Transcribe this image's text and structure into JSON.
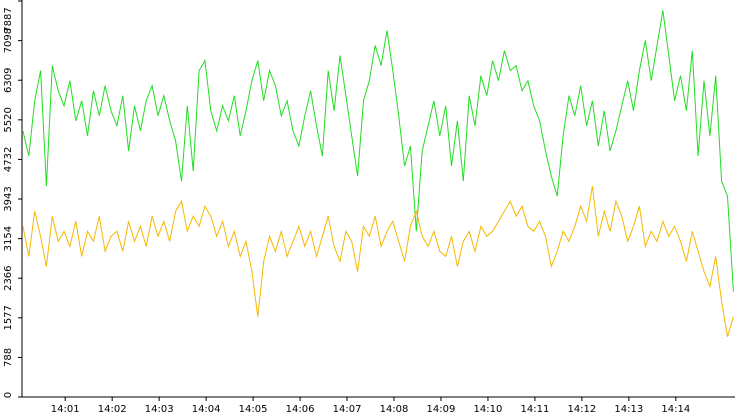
{
  "chart_data": {
    "type": "line",
    "x": [
      0.1,
      0.225,
      0.35,
      0.475,
      0.6,
      0.725,
      0.85,
      0.975,
      1.1,
      1.225,
      1.35,
      1.475,
      1.6,
      1.725,
      1.85,
      1.975,
      2.1,
      2.225,
      2.35,
      2.475,
      2.6,
      2.725,
      2.85,
      2.975,
      3.1,
      3.225,
      3.35,
      3.475,
      3.6,
      3.725,
      3.85,
      3.975,
      4.1,
      4.225,
      4.35,
      4.475,
      4.6,
      4.725,
      4.85,
      4.975,
      5.1,
      5.225,
      5.35,
      5.475,
      5.6,
      5.725,
      5.85,
      5.975,
      6.1,
      6.225,
      6.35,
      6.475,
      6.6,
      6.725,
      6.85,
      6.975,
      7.1,
      7.225,
      7.35,
      7.475,
      7.6,
      7.725,
      7.85,
      7.975,
      8.1,
      8.225,
      8.35,
      8.475,
      8.6,
      8.725,
      8.85,
      8.975,
      9.1,
      9.225,
      9.35,
      9.475,
      9.6,
      9.725,
      9.85,
      9.975,
      10.1,
      10.225,
      10.35,
      10.475,
      10.6,
      10.725,
      10.85,
      10.975,
      11.1,
      11.225,
      11.35,
      11.475,
      11.6,
      11.725,
      11.85,
      11.975,
      12.1,
      12.225,
      12.35,
      12.475,
      12.6,
      12.725,
      12.85,
      12.975,
      13.1,
      13.225,
      13.35,
      13.475,
      13.6,
      13.725,
      13.85,
      13.975,
      14.1,
      14.225,
      14.35,
      14.475,
      14.6,
      14.725,
      14.85,
      14.975,
      15.1,
      15.225
    ],
    "series": [
      {
        "color": "#22dd22",
        "values": [
          5300,
          4800,
          5900,
          6500,
          4200,
          6600,
          6100,
          5800,
          6300,
          5500,
          5900,
          5200,
          6100,
          5600,
          6200,
          5700,
          5400,
          6000,
          4900,
          5800,
          5300,
          5900,
          6200,
          5600,
          6000,
          5500,
          5100,
          4300,
          5800,
          4500,
          6500,
          6700,
          5700,
          5300,
          5800,
          5500,
          6000,
          5200,
          5700,
          6300,
          6700,
          5900,
          6500,
          6200,
          5600,
          5900,
          5300,
          5000,
          5600,
          6100,
          5400,
          4800,
          6500,
          5700,
          6800,
          6000,
          5200,
          4400,
          5900,
          6300,
          7000,
          6600,
          7300,
          6500,
          5600,
          4600,
          5000,
          3300,
          4900,
          5400,
          5900,
          5200,
          5800,
          4600,
          5500,
          4300,
          6000,
          5400,
          6400,
          6000,
          6700,
          6300,
          6900,
          6500,
          6600,
          6100,
          6300,
          5800,
          5500,
          4900,
          4400,
          4000,
          5200,
          6000,
          5600,
          6200,
          5400,
          5900,
          5000,
          5700,
          4900,
          5300,
          5800,
          6300,
          5700,
          6500,
          7100,
          6300,
          7000,
          7700,
          6800,
          5900,
          6400,
          5700,
          6900,
          4800,
          6300,
          5200,
          6400,
          4300,
          4000,
          2100
        ]
      },
      {
        "color": "#f5b800",
        "values": [
          3400,
          2800,
          3700,
          3200,
          2600,
          3600,
          3100,
          3300,
          3000,
          3500,
          2800,
          3300,
          3100,
          3600,
          2900,
          3200,
          3300,
          2900,
          3500,
          3100,
          3400,
          3000,
          3600,
          3200,
          3500,
          3100,
          3700,
          3900,
          3300,
          3600,
          3400,
          3800,
          3600,
          3200,
          3500,
          3000,
          3300,
          2800,
          3100,
          2500,
          1600,
          2700,
          3200,
          2900,
          3300,
          2800,
          3100,
          3400,
          3000,
          3300,
          2800,
          3200,
          3600,
          3000,
          2700,
          3300,
          3100,
          2500,
          3400,
          3200,
          3600,
          3000,
          3300,
          3500,
          3100,
          2700,
          3400,
          3700,
          3200,
          3000,
          3300,
          2900,
          2800,
          3200,
          2600,
          3100,
          3300,
          2900,
          3400,
          3200,
          3300,
          3500,
          3700,
          3900,
          3600,
          3800,
          3400,
          3300,
          3500,
          3200,
          2600,
          2900,
          3300,
          3100,
          3400,
          3800,
          3500,
          4200,
          3200,
          3700,
          3300,
          3900,
          3600,
          3100,
          3400,
          3800,
          3000,
          3300,
          3100,
          3500,
          3200,
          3400,
          3100,
          2700,
          3300,
          2900,
          2500,
          2200,
          2800,
          1900,
          1200,
          1600
        ]
      }
    ],
    "xlim": [
      0.08,
      15.26
    ],
    "xticks": [
      {
        "value": 1,
        "label": "14:01"
      },
      {
        "value": 2,
        "label": "14:02"
      },
      {
        "value": 3,
        "label": "14:03"
      },
      {
        "value": 4,
        "label": "14:04"
      },
      {
        "value": 5,
        "label": "14:05"
      },
      {
        "value": 6,
        "label": "14:06"
      },
      {
        "value": 7,
        "label": "14:07"
      },
      {
        "value": 8,
        "label": "14:08"
      },
      {
        "value": 9,
        "label": "14:09"
      },
      {
        "value": 10,
        "label": "14:10"
      },
      {
        "value": 11,
        "label": "14:11"
      },
      {
        "value": 12,
        "label": "14:12"
      },
      {
        "value": 13,
        "label": "14:13"
      },
      {
        "value": 14,
        "label": "14:14"
      }
    ],
    "ylim": [
      0,
      7887
    ],
    "yticks": [
      0,
      788,
      1577,
      2366,
      3154,
      3943,
      4732,
      5520,
      6309,
      7098,
      7887
    ]
  }
}
